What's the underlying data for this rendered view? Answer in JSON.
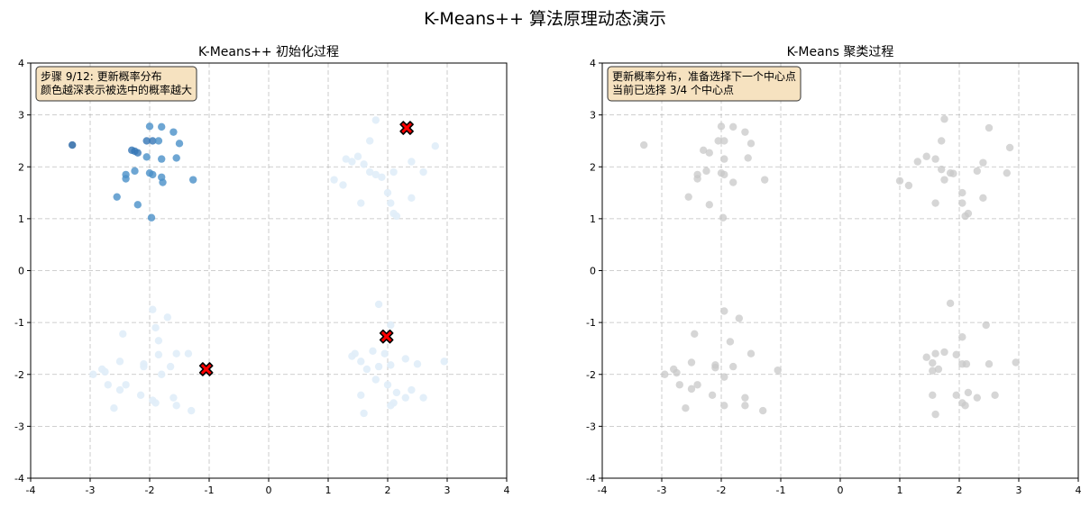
{
  "figure": {
    "title": "K-Means++ 算法原理动态演示"
  },
  "colors": {
    "grid": "#b0b0b0",
    "center_fill": "#ff0000",
    "center_edge": "#000000",
    "box_fill": "#f6e2c0",
    "gray_point": "#c8c8c8",
    "blue_dark": "#1f5fa0",
    "blue_mid": "#4a90c8",
    "blue_faint": "#e0edf8"
  },
  "chart_data": [
    {
      "type": "scatter",
      "title": "K-Means++ 初始化过程",
      "xlim": [
        -4,
        4
      ],
      "ylim": [
        -4,
        4
      ],
      "xticks": [
        "-4",
        "-3",
        "-2",
        "-1",
        "0",
        "1",
        "2",
        "3",
        "4"
      ],
      "yticks": [
        "-4",
        "-3",
        "-2",
        "-1",
        "0",
        "1",
        "2",
        "3",
        "4"
      ],
      "grid": true,
      "annotation": [
        "步骤 9/12: 更新概率分布",
        "颜色越深表示被选中的概率越大"
      ],
      "annotation_position": "top-left",
      "points_selected_cluster": [
        {
          "x": -3.3,
          "y": 2.42,
          "level": 1.0
        },
        {
          "x": -2.25,
          "y": 2.3,
          "level": 0.9
        },
        {
          "x": -2.05,
          "y": 2.5,
          "level": 0.85
        },
        {
          "x": -1.95,
          "y": 2.5,
          "level": 0.85
        },
        {
          "x": -2.0,
          "y": 2.78,
          "level": 0.75
        },
        {
          "x": -1.8,
          "y": 2.77,
          "level": 0.7
        },
        {
          "x": -1.6,
          "y": 2.67,
          "level": 0.7
        },
        {
          "x": -1.85,
          "y": 2.5,
          "level": 0.75
        },
        {
          "x": -1.5,
          "y": 2.45,
          "level": 0.7
        },
        {
          "x": -2.3,
          "y": 2.32,
          "level": 0.8
        },
        {
          "x": -2.2,
          "y": 2.27,
          "level": 0.8
        },
        {
          "x": -2.05,
          "y": 2.19,
          "level": 0.75
        },
        {
          "x": -1.8,
          "y": 2.15,
          "level": 0.7
        },
        {
          "x": -1.55,
          "y": 2.17,
          "level": 0.7
        },
        {
          "x": -2.4,
          "y": 1.85,
          "level": 0.75
        },
        {
          "x": -2.4,
          "y": 1.77,
          "level": 0.75
        },
        {
          "x": -2.25,
          "y": 1.92,
          "level": 0.7
        },
        {
          "x": -2.0,
          "y": 1.88,
          "level": 0.7
        },
        {
          "x": -1.95,
          "y": 1.85,
          "level": 0.7
        },
        {
          "x": -1.8,
          "y": 1.8,
          "level": 0.7
        },
        {
          "x": -1.78,
          "y": 1.7,
          "level": 0.65
        },
        {
          "x": -1.27,
          "y": 1.75,
          "level": 0.65
        },
        {
          "x": -2.55,
          "y": 1.42,
          "level": 0.65
        },
        {
          "x": -2.2,
          "y": 1.27,
          "level": 0.6
        },
        {
          "x": -1.97,
          "y": 1.02,
          "level": 0.6
        }
      ],
      "points_faint": [
        {
          "x": 1.8,
          "y": 2.9
        },
        {
          "x": 1.7,
          "y": 2.5
        },
        {
          "x": 1.5,
          "y": 2.2
        },
        {
          "x": 1.4,
          "y": 2.1
        },
        {
          "x": 1.3,
          "y": 2.15
        },
        {
          "x": 1.6,
          "y": 2.05
        },
        {
          "x": 1.7,
          "y": 1.9
        },
        {
          "x": 1.8,
          "y": 1.85
        },
        {
          "x": 2.1,
          "y": 1.9
        },
        {
          "x": 2.4,
          "y": 2.1
        },
        {
          "x": 2.8,
          "y": 2.4
        },
        {
          "x": 1.1,
          "y": 1.75
        },
        {
          "x": 1.25,
          "y": 1.65
        },
        {
          "x": 1.9,
          "y": 1.8
        },
        {
          "x": 2.0,
          "y": 1.5
        },
        {
          "x": 2.05,
          "y": 1.3
        },
        {
          "x": 2.1,
          "y": 1.1
        },
        {
          "x": 2.15,
          "y": 1.05
        },
        {
          "x": 2.4,
          "y": 1.4
        },
        {
          "x": 1.55,
          "y": 1.3
        },
        {
          "x": 2.6,
          "y": 1.9
        },
        {
          "x": -1.95,
          "y": -0.75
        },
        {
          "x": -1.7,
          "y": -0.9
        },
        {
          "x": -1.9,
          "y": -1.1
        },
        {
          "x": -2.45,
          "y": -1.22
        },
        {
          "x": -1.85,
          "y": -1.35
        },
        {
          "x": -1.55,
          "y": -1.6
        },
        {
          "x": -1.85,
          "y": -1.62
        },
        {
          "x": -2.1,
          "y": -1.8
        },
        {
          "x": -2.1,
          "y": -1.85
        },
        {
          "x": -2.5,
          "y": -1.75
        },
        {
          "x": -2.8,
          "y": -1.9
        },
        {
          "x": -2.75,
          "y": -1.95
        },
        {
          "x": -2.95,
          "y": -2.0
        },
        {
          "x": -2.7,
          "y": -2.2
        },
        {
          "x": -2.5,
          "y": -2.3
        },
        {
          "x": -2.4,
          "y": -2.2
        },
        {
          "x": -2.15,
          "y": -2.4
        },
        {
          "x": -1.95,
          "y": -2.5
        },
        {
          "x": -1.6,
          "y": -2.45
        },
        {
          "x": -1.8,
          "y": -2.0
        },
        {
          "x": -1.35,
          "y": -1.6
        },
        {
          "x": -1.65,
          "y": -1.85
        },
        {
          "x": -2.6,
          "y": -2.65
        },
        {
          "x": -1.3,
          "y": -2.7
        },
        {
          "x": -1.55,
          "y": -2.6
        },
        {
          "x": -1.9,
          "y": -2.55
        },
        {
          "x": -1.1,
          "y": -1.9
        },
        {
          "x": 1.85,
          "y": -0.65
        },
        {
          "x": 2.05,
          "y": -1.05
        },
        {
          "x": 1.45,
          "y": -1.6
        },
        {
          "x": 1.55,
          "y": -1.75
        },
        {
          "x": 1.75,
          "y": -1.55
        },
        {
          "x": 1.95,
          "y": -1.6
        },
        {
          "x": 2.05,
          "y": -1.82
        },
        {
          "x": 1.65,
          "y": -1.9
        },
        {
          "x": 1.85,
          "y": -1.85
        },
        {
          "x": 2.3,
          "y": -1.7
        },
        {
          "x": 2.5,
          "y": -1.8
        },
        {
          "x": 2.0,
          "y": -2.2
        },
        {
          "x": 2.15,
          "y": -2.35
        },
        {
          "x": 2.3,
          "y": -2.45
        },
        {
          "x": 1.55,
          "y": -2.4
        },
        {
          "x": 1.6,
          "y": -2.75
        },
        {
          "x": 2.1,
          "y": -2.55
        },
        {
          "x": 2.05,
          "y": -2.6
        },
        {
          "x": 2.6,
          "y": -2.45
        },
        {
          "x": 2.95,
          "y": -1.75
        },
        {
          "x": 1.4,
          "y": -1.65
        },
        {
          "x": 1.8,
          "y": -2.1
        },
        {
          "x": 2.4,
          "y": -2.3
        }
      ],
      "centers": [
        {
          "x": 2.32,
          "y": 2.75
        },
        {
          "x": -1.05,
          "y": -1.9
        },
        {
          "x": 1.98,
          "y": -1.27
        }
      ]
    },
    {
      "type": "scatter",
      "title": "K-Means 聚类过程",
      "xlim": [
        -4,
        4
      ],
      "ylim": [
        -4,
        4
      ],
      "xticks": [
        "-4",
        "-3",
        "-2",
        "-1",
        "0",
        "1",
        "2",
        "3",
        "4"
      ],
      "yticks": [
        "-4",
        "-3",
        "-2",
        "-1",
        "0",
        "1",
        "2",
        "3",
        "4"
      ],
      "grid": true,
      "annotation": [
        "更新概率分布，准备选择下一个中心点",
        "当前已选择 3/4 个中心点"
      ],
      "annotation_position": "top-left",
      "points": [
        {
          "x": -3.3,
          "y": 2.42
        },
        {
          "x": -2.0,
          "y": 2.78
        },
        {
          "x": -1.8,
          "y": 2.77
        },
        {
          "x": -1.6,
          "y": 2.67
        },
        {
          "x": -2.05,
          "y": 2.5
        },
        {
          "x": -1.95,
          "y": 2.5
        },
        {
          "x": -1.5,
          "y": 2.45
        },
        {
          "x": -2.3,
          "y": 2.32
        },
        {
          "x": -2.2,
          "y": 2.27
        },
        {
          "x": -1.55,
          "y": 2.17
        },
        {
          "x": -1.95,
          "y": 2.15
        },
        {
          "x": -2.4,
          "y": 1.85
        },
        {
          "x": -2.4,
          "y": 1.77
        },
        {
          "x": -2.25,
          "y": 1.92
        },
        {
          "x": -2.0,
          "y": 1.88
        },
        {
          "x": -1.95,
          "y": 1.85
        },
        {
          "x": -1.8,
          "y": 1.7
        },
        {
          "x": -1.27,
          "y": 1.75
        },
        {
          "x": -2.55,
          "y": 1.42
        },
        {
          "x": -2.2,
          "y": 1.27
        },
        {
          "x": -1.97,
          "y": 1.02
        },
        {
          "x": 1.75,
          "y": 2.92
        },
        {
          "x": 2.5,
          "y": 2.75
        },
        {
          "x": 1.7,
          "y": 2.5
        },
        {
          "x": 2.85,
          "y": 2.37
        },
        {
          "x": 1.45,
          "y": 2.2
        },
        {
          "x": 1.3,
          "y": 2.1
        },
        {
          "x": 1.6,
          "y": 2.15
        },
        {
          "x": 2.4,
          "y": 2.08
        },
        {
          "x": 1.7,
          "y": 1.95
        },
        {
          "x": 2.3,
          "y": 1.92
        },
        {
          "x": 1.85,
          "y": 1.88
        },
        {
          "x": 1.9,
          "y": 1.87
        },
        {
          "x": 2.8,
          "y": 1.88
        },
        {
          "x": 1.0,
          "y": 1.73
        },
        {
          "x": 1.75,
          "y": 1.75
        },
        {
          "x": 1.15,
          "y": 1.64
        },
        {
          "x": 2.05,
          "y": 1.5
        },
        {
          "x": 2.4,
          "y": 1.4
        },
        {
          "x": 2.05,
          "y": 1.3
        },
        {
          "x": 1.6,
          "y": 1.3
        },
        {
          "x": 2.15,
          "y": 1.1
        },
        {
          "x": 2.1,
          "y": 1.05
        },
        {
          "x": -1.95,
          "y": -0.78
        },
        {
          "x": -1.7,
          "y": -0.92
        },
        {
          "x": -2.45,
          "y": -1.22
        },
        {
          "x": -1.85,
          "y": -1.37
        },
        {
          "x": -1.5,
          "y": -1.6
        },
        {
          "x": -2.5,
          "y": -1.77
        },
        {
          "x": -2.1,
          "y": -1.82
        },
        {
          "x": -2.1,
          "y": -1.87
        },
        {
          "x": -1.8,
          "y": -1.85
        },
        {
          "x": -1.05,
          "y": -1.92
        },
        {
          "x": -2.8,
          "y": -1.9
        },
        {
          "x": -2.75,
          "y": -1.97
        },
        {
          "x": -2.95,
          "y": -2.0
        },
        {
          "x": -1.95,
          "y": -2.05
        },
        {
          "x": -2.7,
          "y": -2.2
        },
        {
          "x": -2.5,
          "y": -2.28
        },
        {
          "x": -2.4,
          "y": -2.2
        },
        {
          "x": -2.15,
          "y": -2.4
        },
        {
          "x": -1.6,
          "y": -2.45
        },
        {
          "x": -1.95,
          "y": -2.6
        },
        {
          "x": -1.6,
          "y": -2.6
        },
        {
          "x": -2.6,
          "y": -2.65
        },
        {
          "x": -1.3,
          "y": -2.7
        },
        {
          "x": 1.85,
          "y": -0.63
        },
        {
          "x": 2.45,
          "y": -1.05
        },
        {
          "x": 2.05,
          "y": -1.28
        },
        {
          "x": 1.75,
          "y": -1.57
        },
        {
          "x": 1.6,
          "y": -1.6
        },
        {
          "x": 1.95,
          "y": -1.62
        },
        {
          "x": 1.45,
          "y": -1.67
        },
        {
          "x": 2.95,
          "y": -1.77
        },
        {
          "x": 1.55,
          "y": -1.78
        },
        {
          "x": 2.05,
          "y": -1.8
        },
        {
          "x": 2.12,
          "y": -1.8
        },
        {
          "x": 2.5,
          "y": -1.8
        },
        {
          "x": 1.65,
          "y": -1.9
        },
        {
          "x": 1.55,
          "y": -1.93
        },
        {
          "x": 2.15,
          "y": -2.35
        },
        {
          "x": 1.55,
          "y": -2.4
        },
        {
          "x": 1.95,
          "y": -2.4
        },
        {
          "x": 2.3,
          "y": -2.45
        },
        {
          "x": 2.6,
          "y": -2.4
        },
        {
          "x": 2.05,
          "y": -2.55
        },
        {
          "x": 2.1,
          "y": -2.6
        },
        {
          "x": 1.6,
          "y": -2.77
        }
      ]
    }
  ]
}
